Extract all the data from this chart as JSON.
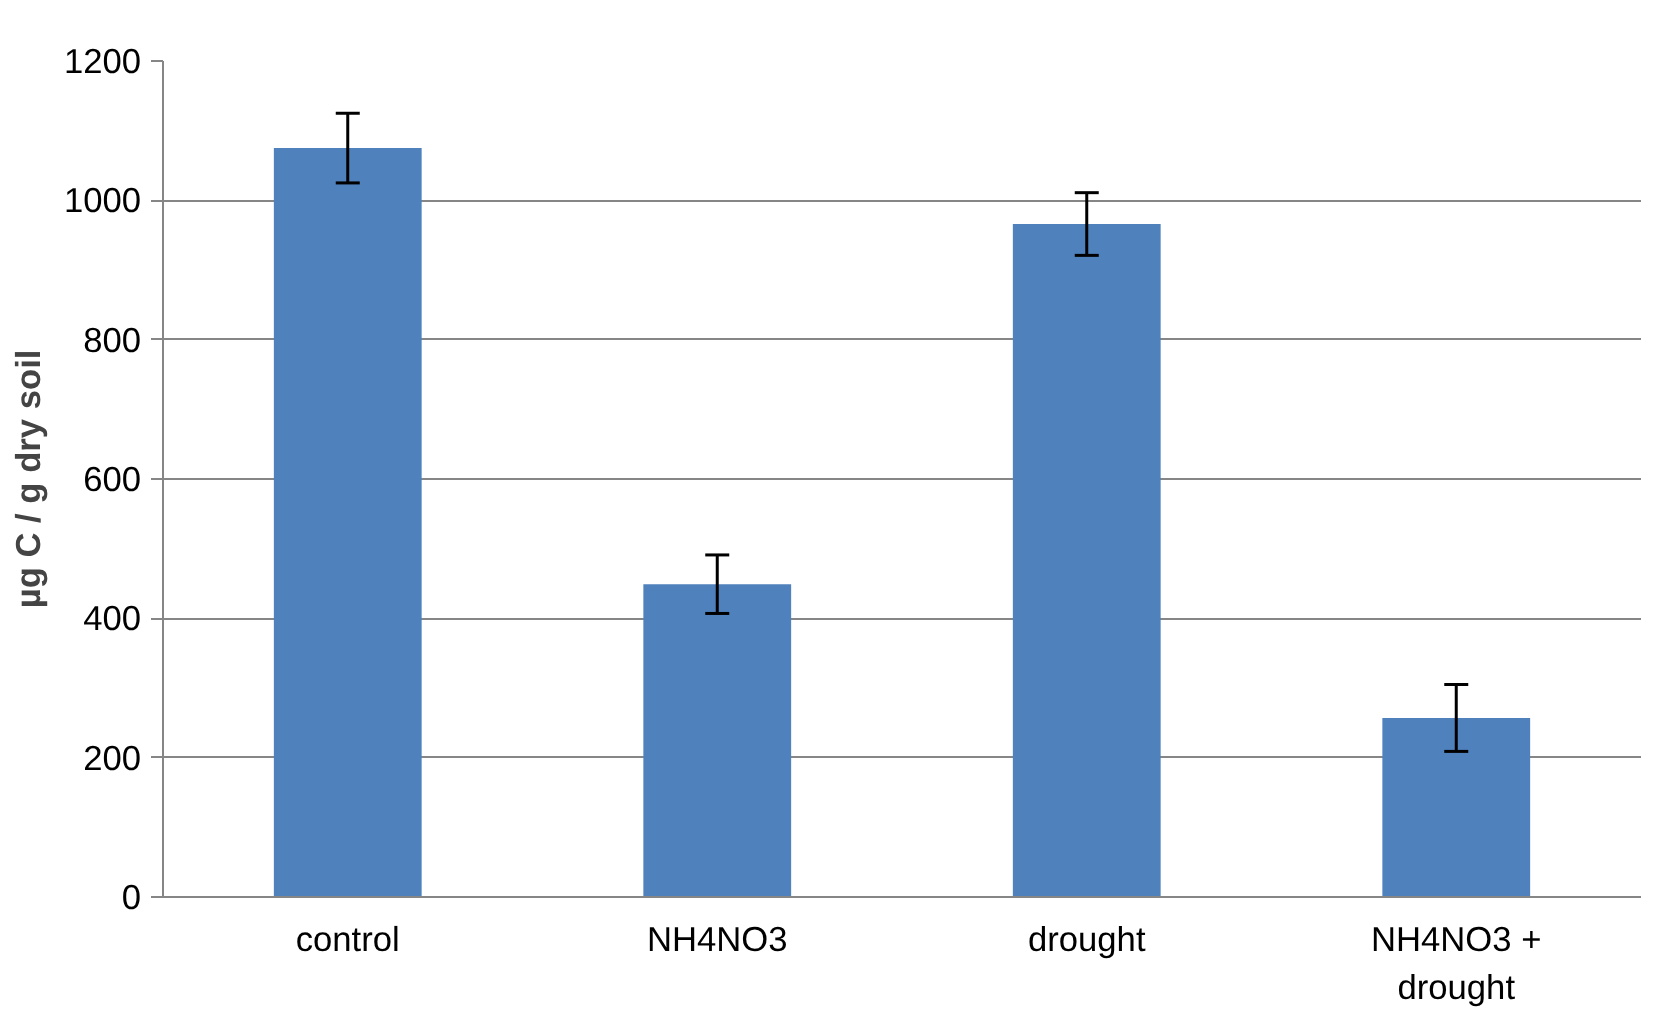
{
  "chart_data": {
    "type": "bar",
    "ylabel": "µg C / g dry soil",
    "categories": [
      "control",
      "NH4NO3",
      "drought",
      "NH4NO3 +\ndrought"
    ],
    "values": [
      1075,
      449,
      966,
      257
    ],
    "errors": [
      50,
      42,
      45,
      48
    ],
    "color": "#4f81bd",
    "ylim": [
      0,
      1200
    ],
    "yticks": [
      0,
      200,
      400,
      600,
      800,
      1000,
      1200
    ],
    "grid": "y"
  }
}
